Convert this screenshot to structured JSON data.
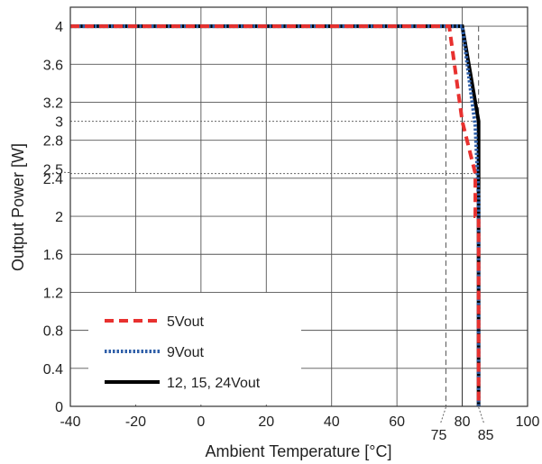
{
  "chart_data": {
    "type": "line",
    "title": "",
    "xlabel": "Ambient Temperature [°C]",
    "ylabel": "Output Power [W]",
    "xlim": [
      -40,
      100
    ],
    "ylim": [
      0,
      4.2
    ],
    "grid": true,
    "x_ticks": [
      {
        "value": -40,
        "label": "-40"
      },
      {
        "value": -20,
        "label": "-20"
      },
      {
        "value": 0,
        "label": "0"
      },
      {
        "value": 20,
        "label": "20"
      },
      {
        "value": 40,
        "label": "40"
      },
      {
        "value": 60,
        "label": "60"
      },
      {
        "value": 80,
        "label": "80"
      },
      {
        "value": 100,
        "label": "100"
      }
    ],
    "x_extra_ticks": [
      {
        "value": 75,
        "label": "75"
      },
      {
        "value": 85,
        "label": "85"
      }
    ],
    "y_ticks": [
      {
        "value": 0,
        "label": "0"
      },
      {
        "value": 0.4,
        "label": "0.4"
      },
      {
        "value": 0.8,
        "label": "0.8"
      },
      {
        "value": 1.2,
        "label": "1.2"
      },
      {
        "value": 1.6,
        "label": "1.6"
      },
      {
        "value": 2,
        "label": "2"
      },
      {
        "value": 2.4,
        "label": "2.4"
      },
      {
        "value": 2.8,
        "label": "2.8"
      },
      {
        "value": 3.2,
        "label": "3.2"
      },
      {
        "value": 3.6,
        "label": "3.6"
      },
      {
        "value": 4,
        "label": "4"
      }
    ],
    "y_extra_ticks": [
      {
        "value": 2.5,
        "label": "2.5"
      },
      {
        "value": 3,
        "label": "3"
      }
    ],
    "reference_lines": [
      {
        "orientation": "horizontal",
        "value": 3
      },
      {
        "orientation": "horizontal",
        "value": 2.45
      },
      {
        "orientation": "vertical",
        "value": 75
      },
      {
        "orientation": "vertical",
        "value": 80
      },
      {
        "orientation": "vertical",
        "value": 85
      }
    ],
    "legend_position": "bottom-left",
    "series": [
      {
        "name": "5Vout",
        "color": "#e8312f",
        "style": "dashed",
        "x": [
          -40,
          76,
          80,
          84,
          84,
          85,
          85
        ],
        "y": [
          4,
          4,
          3.0,
          2.45,
          2.0,
          2.0,
          0
        ]
      },
      {
        "name": "9Vout",
        "color": "#2f5fa8",
        "style": "dotted",
        "x": [
          -40,
          80,
          84,
          85,
          85
        ],
        "y": [
          4,
          4,
          2.95,
          2.2,
          0
        ]
      },
      {
        "name": "12, 15, 24Vout",
        "color": "#000000",
        "style": "solid",
        "x": [
          -40,
          80,
          85,
          85
        ],
        "y": [
          4,
          4,
          3.0,
          0
        ]
      }
    ]
  }
}
